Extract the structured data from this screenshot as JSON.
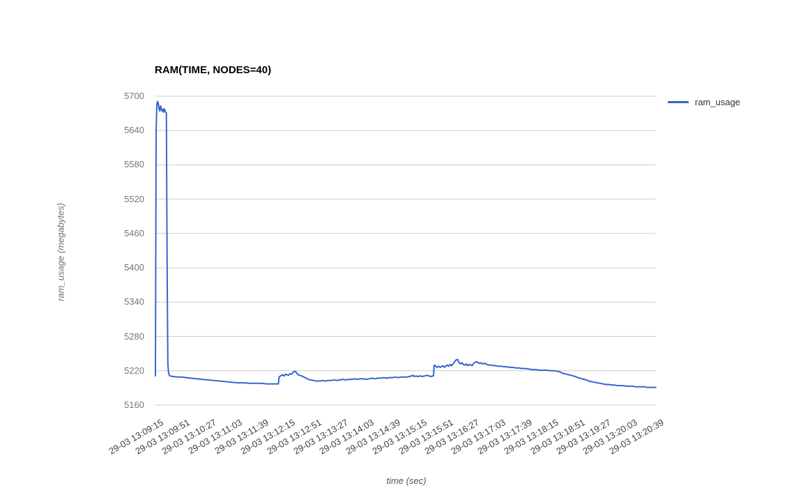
{
  "chart_data": {
    "type": "line",
    "title": "RAM(TIME, NODES=40)",
    "xlabel": "time (sec)",
    "ylabel": "ram_usage (megabytes)",
    "grid": "horizontal",
    "ylim": [
      5160,
      5700
    ],
    "y_ticks": [
      5160,
      5220,
      5280,
      5340,
      5400,
      5460,
      5520,
      5580,
      5640,
      5700
    ],
    "xlim_seconds": [
      0,
      684
    ],
    "x_tick_interval_sec": 36,
    "x_tick_labels": [
      "29-03 13:09:15",
      "29-03 13:09:51",
      "29-03 13:10:27",
      "29-03 13:11:03",
      "29-03 13:11:39",
      "29-03 13:12:15",
      "29-03 13:12:51",
      "29-03 13:13:27",
      "29-03 13:14:03",
      "29-03 13:14:39",
      "29-03 13:15:15",
      "29-03 13:15:51",
      "29-03 13:16:27",
      "29-03 13:17:03",
      "29-03 13:17:39",
      "29-03 13:18:15",
      "29-03 13:18:51",
      "29-03 13:19:27",
      "29-03 13:20:03",
      "29-03 13:20:39"
    ],
    "legend": {
      "position": "right",
      "entries": [
        {
          "label": "ram_usage",
          "color": "#3366cc"
        }
      ]
    },
    "colors": {
      "line": "#3366cc",
      "grid": "#cccccc",
      "y_tick_text": "#757575",
      "x_tick_text": "#404040",
      "title_text": "#000000"
    },
    "series": [
      {
        "name": "ram_usage",
        "color": "#3366cc",
        "points": [
          [
            0,
            5211
          ],
          [
            1,
            5640
          ],
          [
            2,
            5686
          ],
          [
            3,
            5691
          ],
          [
            4,
            5687
          ],
          [
            5,
            5678
          ],
          [
            6,
            5674
          ],
          [
            7,
            5683
          ],
          [
            8,
            5679
          ],
          [
            9,
            5674
          ],
          [
            10,
            5677
          ],
          [
            11,
            5672
          ],
          [
            12,
            5678
          ],
          [
            13,
            5675
          ],
          [
            14,
            5672
          ],
          [
            15,
            5671
          ],
          [
            16,
            5400
          ],
          [
            17,
            5232
          ],
          [
            18,
            5216
          ],
          [
            19,
            5212
          ],
          [
            20,
            5211
          ],
          [
            24,
            5210
          ],
          [
            30,
            5209
          ],
          [
            36,
            5209
          ],
          [
            42,
            5208
          ],
          [
            48,
            5207
          ],
          [
            56,
            5206
          ],
          [
            64,
            5205
          ],
          [
            72,
            5204
          ],
          [
            80,
            5203
          ],
          [
            88,
            5202
          ],
          [
            96,
            5201
          ],
          [
            104,
            5200
          ],
          [
            112,
            5199
          ],
          [
            120,
            5199
          ],
          [
            128,
            5198
          ],
          [
            136,
            5198
          ],
          [
            144,
            5198
          ],
          [
            152,
            5197
          ],
          [
            160,
            5197
          ],
          [
            168,
            5197
          ],
          [
            169,
            5209
          ],
          [
            171,
            5211
          ],
          [
            174,
            5213
          ],
          [
            176,
            5211
          ],
          [
            178,
            5214
          ],
          [
            180,
            5213
          ],
          [
            182,
            5212
          ],
          [
            184,
            5215
          ],
          [
            186,
            5214
          ],
          [
            188,
            5217
          ],
          [
            190,
            5219
          ],
          [
            192,
            5218
          ],
          [
            194,
            5214
          ],
          [
            197,
            5212
          ],
          [
            200,
            5211
          ],
          [
            203,
            5209
          ],
          [
            206,
            5207
          ],
          [
            209,
            5205
          ],
          [
            212,
            5204
          ],
          [
            216,
            5203
          ],
          [
            220,
            5202
          ],
          [
            224,
            5202
          ],
          [
            228,
            5203
          ],
          [
            232,
            5202
          ],
          [
            236,
            5203
          ],
          [
            240,
            5203
          ],
          [
            244,
            5204
          ],
          [
            248,
            5203
          ],
          [
            252,
            5204
          ],
          [
            256,
            5205
          ],
          [
            260,
            5204
          ],
          [
            264,
            5205
          ],
          [
            268,
            5205
          ],
          [
            272,
            5206
          ],
          [
            276,
            5205
          ],
          [
            280,
            5206
          ],
          [
            284,
            5206
          ],
          [
            288,
            5205
          ],
          [
            292,
            5206
          ],
          [
            296,
            5207
          ],
          [
            300,
            5206
          ],
          [
            304,
            5207
          ],
          [
            308,
            5207
          ],
          [
            312,
            5208
          ],
          [
            316,
            5207
          ],
          [
            320,
            5208
          ],
          [
            324,
            5208
          ],
          [
            328,
            5209
          ],
          [
            332,
            5208
          ],
          [
            336,
            5209
          ],
          [
            340,
            5209
          ],
          [
            344,
            5209
          ],
          [
            347,
            5210
          ],
          [
            350,
            5211
          ],
          [
            352,
            5212
          ],
          [
            354,
            5210
          ],
          [
            356,
            5211
          ],
          [
            359,
            5210
          ],
          [
            362,
            5211
          ],
          [
            365,
            5210
          ],
          [
            368,
            5211
          ],
          [
            371,
            5212
          ],
          [
            374,
            5211
          ],
          [
            377,
            5210
          ],
          [
            379,
            5211
          ],
          [
            380,
            5211
          ],
          [
            381,
            5230
          ],
          [
            383,
            5228
          ],
          [
            385,
            5226
          ],
          [
            387,
            5228
          ],
          [
            389,
            5226
          ],
          [
            391,
            5227
          ],
          [
            393,
            5229
          ],
          [
            395,
            5226
          ],
          [
            397,
            5228
          ],
          [
            399,
            5230
          ],
          [
            401,
            5228
          ],
          [
            403,
            5231
          ],
          [
            405,
            5229
          ],
          [
            407,
            5232
          ],
          [
            409,
            5236
          ],
          [
            411,
            5239
          ],
          [
            413,
            5240
          ],
          [
            415,
            5234
          ],
          [
            417,
            5232
          ],
          [
            419,
            5234
          ],
          [
            421,
            5231
          ],
          [
            423,
            5230
          ],
          [
            425,
            5232
          ],
          [
            427,
            5229
          ],
          [
            429,
            5231
          ],
          [
            431,
            5230
          ],
          [
            433,
            5229
          ],
          [
            435,
            5233
          ],
          [
            437,
            5235
          ],
          [
            439,
            5236
          ],
          [
            441,
            5234
          ],
          [
            443,
            5233
          ],
          [
            445,
            5234
          ],
          [
            447,
            5232
          ],
          [
            450,
            5233
          ],
          [
            453,
            5231
          ],
          [
            456,
            5230
          ],
          [
            459,
            5230
          ],
          [
            462,
            5229
          ],
          [
            465,
            5229
          ],
          [
            468,
            5228
          ],
          [
            472,
            5228
          ],
          [
            476,
            5227
          ],
          [
            480,
            5227
          ],
          [
            484,
            5226
          ],
          [
            488,
            5226
          ],
          [
            492,
            5225
          ],
          [
            496,
            5225
          ],
          [
            500,
            5224
          ],
          [
            505,
            5224
          ],
          [
            510,
            5223
          ],
          [
            515,
            5222
          ],
          [
            520,
            5222
          ],
          [
            525,
            5221
          ],
          [
            530,
            5221
          ],
          [
            535,
            5221
          ],
          [
            540,
            5220
          ],
          [
            545,
            5220
          ],
          [
            550,
            5219
          ],
          [
            553,
            5218
          ],
          [
            556,
            5216
          ],
          [
            559,
            5215
          ],
          [
            562,
            5214
          ],
          [
            565,
            5213
          ],
          [
            568,
            5212
          ],
          [
            571,
            5211
          ],
          [
            574,
            5210
          ],
          [
            577,
            5208
          ],
          [
            580,
            5207
          ],
          [
            583,
            5206
          ],
          [
            586,
            5205
          ],
          [
            589,
            5204
          ],
          [
            592,
            5202
          ],
          [
            596,
            5201
          ],
          [
            600,
            5200
          ],
          [
            604,
            5199
          ],
          [
            608,
            5198
          ],
          [
            612,
            5197
          ],
          [
            616,
            5196
          ],
          [
            620,
            5196
          ],
          [
            624,
            5195
          ],
          [
            628,
            5195
          ],
          [
            632,
            5194
          ],
          [
            636,
            5194
          ],
          [
            640,
            5194
          ],
          [
            644,
            5193
          ],
          [
            648,
            5193
          ],
          [
            652,
            5193
          ],
          [
            656,
            5192
          ],
          [
            660,
            5192
          ],
          [
            664,
            5192
          ],
          [
            668,
            5192
          ],
          [
            672,
            5191
          ],
          [
            676,
            5191
          ],
          [
            680,
            5191
          ],
          [
            684,
            5191
          ]
        ]
      }
    ]
  }
}
